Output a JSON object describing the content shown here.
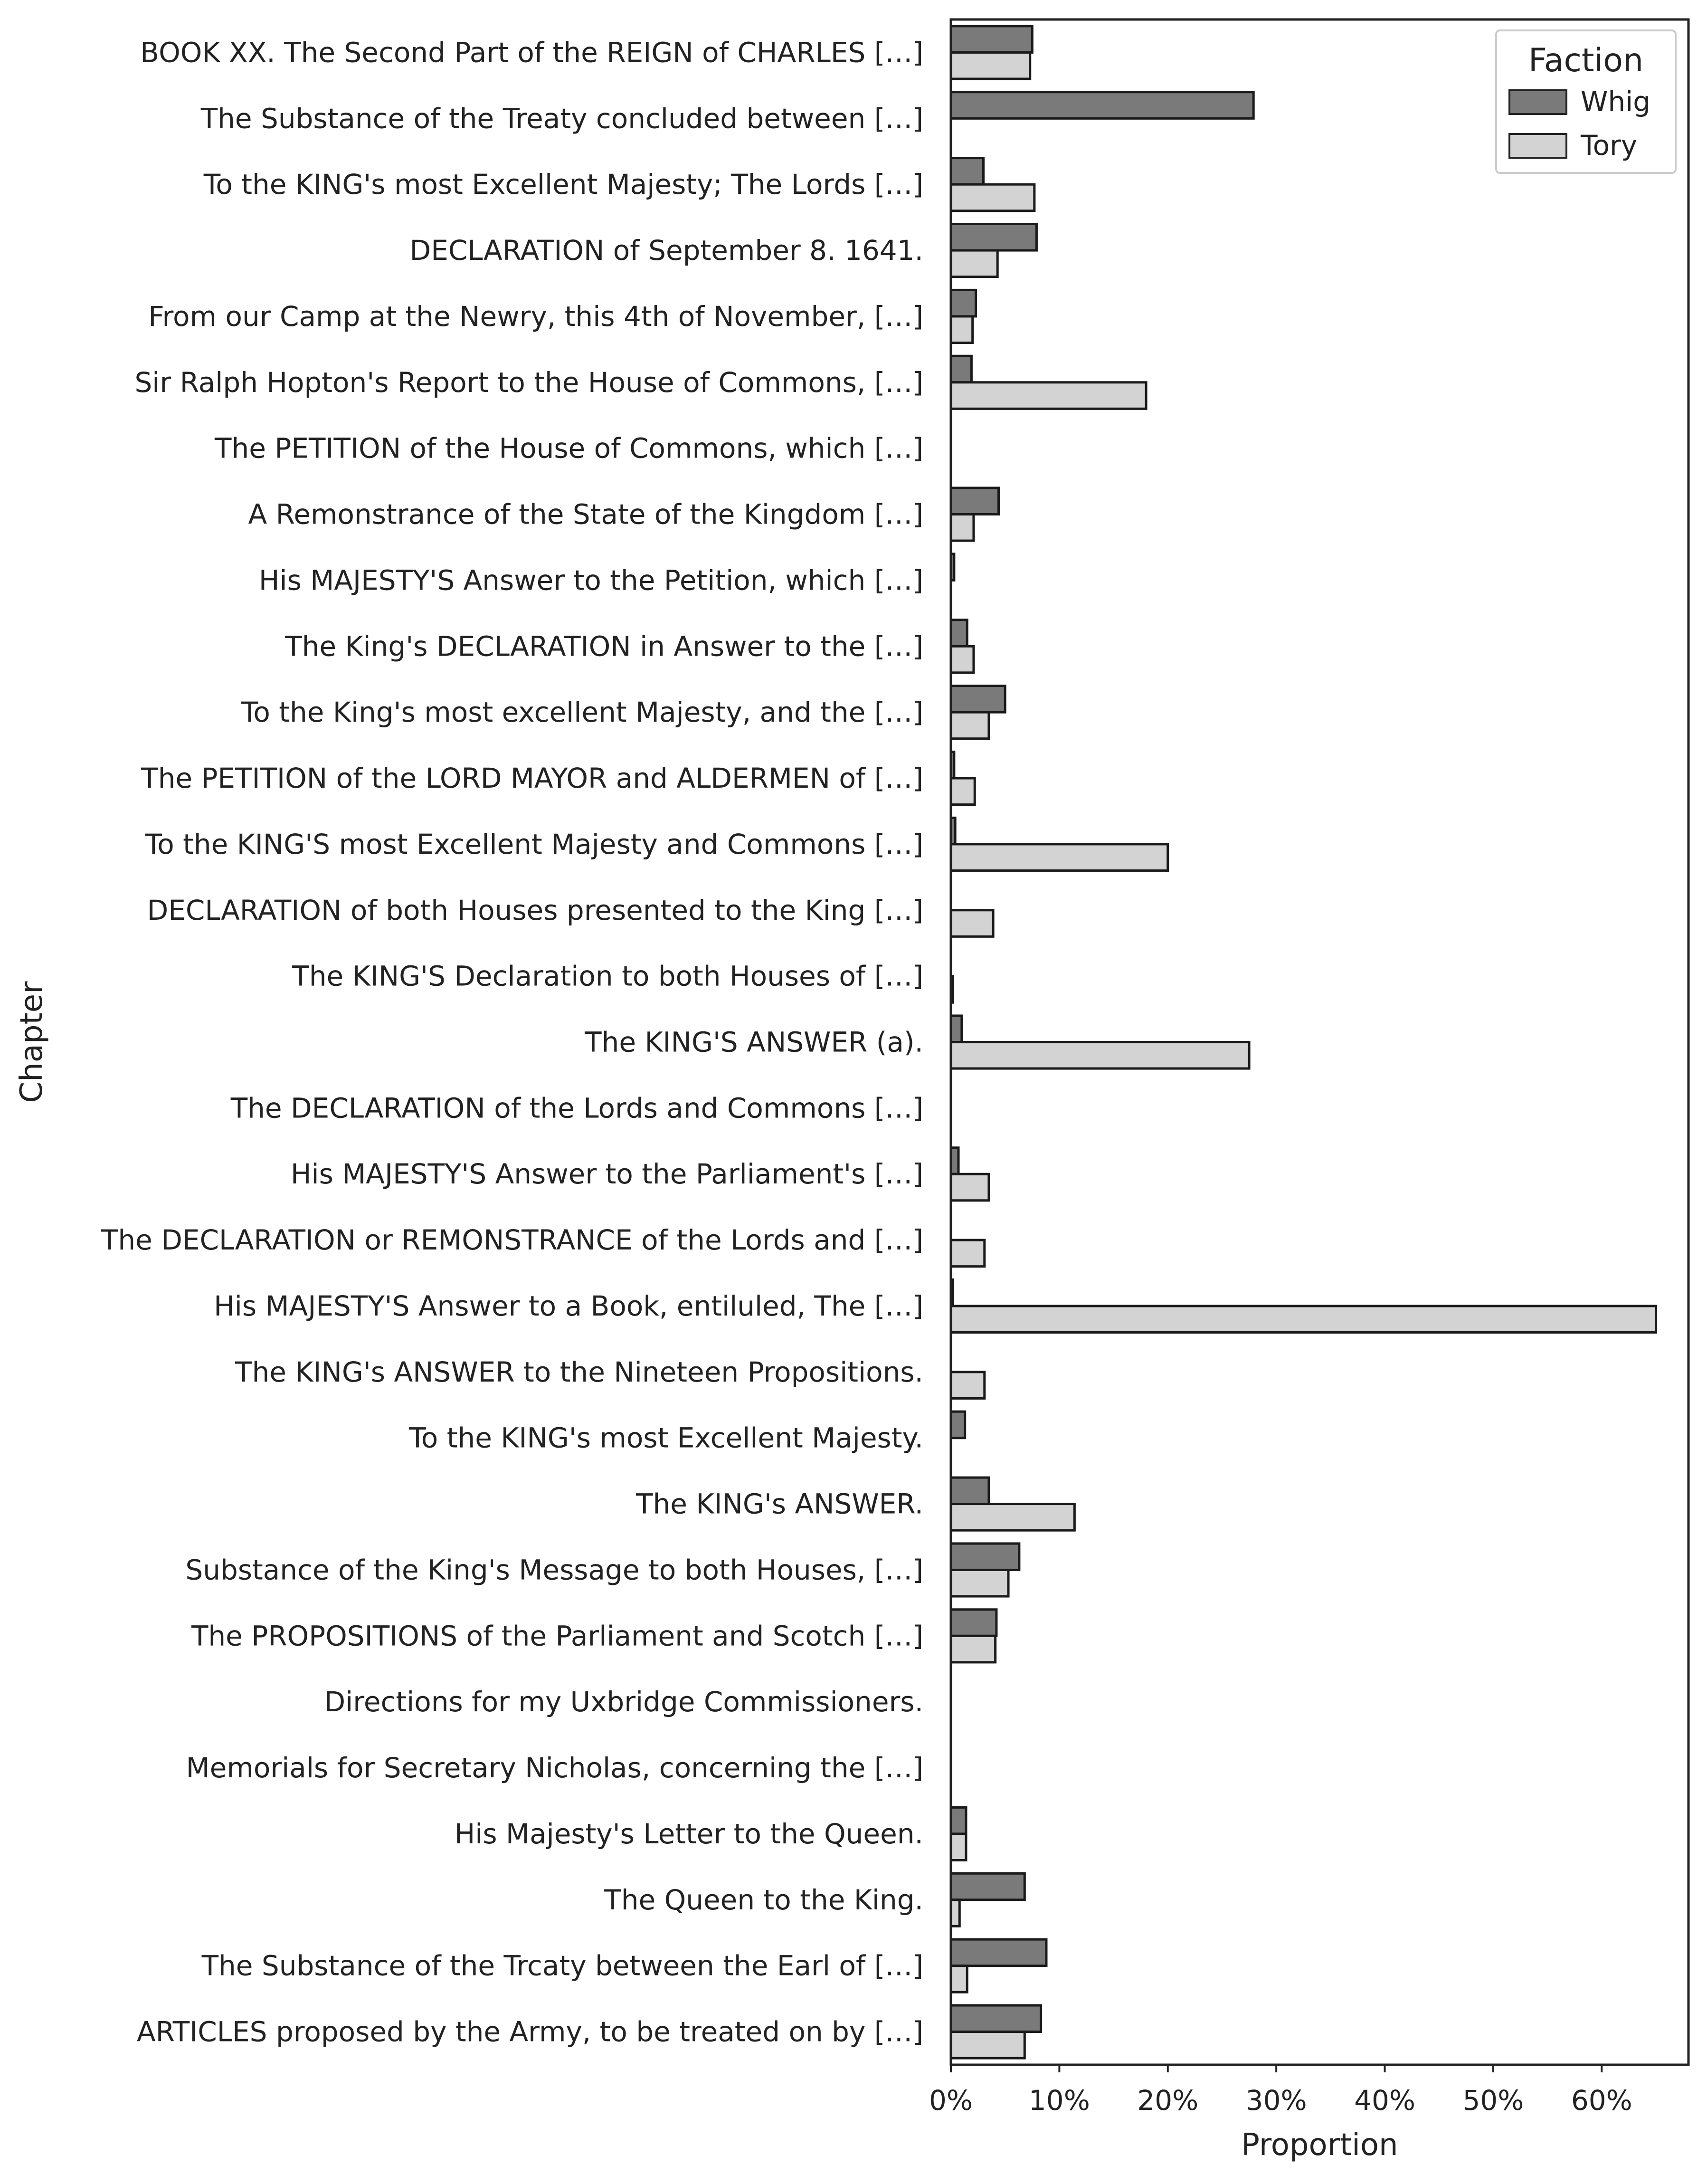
{
  "chart_data": {
    "type": "bar",
    "orientation": "horizontal",
    "title": "",
    "xlabel": "Proportion",
    "ylabel": "Chapter",
    "xlim": [
      0,
      0.68
    ],
    "x_ticks": [
      0,
      0.1,
      0.2,
      0.3,
      0.4,
      0.5,
      0.6
    ],
    "x_tick_labels": [
      "0%",
      "10%",
      "20%",
      "30%",
      "40%",
      "50%",
      "60%"
    ],
    "grid": false,
    "legend": {
      "title": "Faction",
      "placement": "top-right",
      "entries": [
        "Whig",
        "Tory"
      ]
    },
    "categories": [
      "BOOK XX. The Second Part of the REIGN of CHARLES […]",
      "The Substance of the Treaty concluded between […]",
      "To the KING's most Excellent Majesty; The Lords […]",
      "DECLARATION of September 8. 1641.",
      "From our Camp at the Newry, this 4th of November, […]",
      "Sir Ralph Hopton's Report to the House of Commons, […]",
      "The PETITION of the House of Commons, which […]",
      "A Remonstrance of the State of the Kingdom […]",
      "His MAJESTY'S Answer to the Petition, which […]",
      "The King's DECLARATION in Answer to the […]",
      "To the King's most excellent Majesty, and the […]",
      "The PETITION of the LORD MAYOR and ALDERMEN of […]",
      "To the KING'S most Excellent Majesty and Commons […]",
      "DECLARATION of both Houses presented to the King […]",
      "The KING'S Declaration to both Houses of […]",
      "The KING'S ANSWER (a).",
      "The DECLARATION of the Lords and Commons […]",
      "His MAJESTY'S Answer to the Parliament's […]",
      "The DECLARATION or REMONSTRANCE of the Lords and […]",
      "His MAJESTY'S Answer to a Book, entiluled, The […]",
      "The KING's ANSWER to the Nineteen Propositions.",
      "To the KING's most Excellent Majesty.",
      "The KING's ANSWER.",
      "Substance of the King's Message to both Houses, […]",
      "The PROPOSITIONS of the Parliament and Scotch […]",
      "Directions for my Uxbridge Commissioners.",
      "Memorials for Secretary Nicholas, concerning the […]",
      "His Majesty's Letter to the Queen.",
      "The Queen to the King.",
      "The Substance of the Trcaty between the Earl of […]",
      "ARTICLES proposed by the Army, to be treated on by […]"
    ],
    "series": [
      {
        "name": "Whig",
        "color": "#7a7a7a",
        "values": [
          0.075,
          0.279,
          0.03,
          0.079,
          0.023,
          0.019,
          0.0,
          0.044,
          0.003,
          0.015,
          0.05,
          0.003,
          0.004,
          0.0,
          0.0,
          0.01,
          0.0,
          0.007,
          0.0,
          0.002,
          0.0,
          0.013,
          0.035,
          0.063,
          0.042,
          0.0,
          0.0,
          0.014,
          0.068,
          0.088,
          0.083
        ]
      },
      {
        "name": "Tory",
        "color": "#d3d3d3",
        "values": [
          0.073,
          0.0,
          0.077,
          0.043,
          0.02,
          0.18,
          0.0,
          0.021,
          0.0,
          0.021,
          0.035,
          0.022,
          0.2,
          0.039,
          0.002,
          0.275,
          0.0,
          0.035,
          0.031,
          0.65,
          0.031,
          0.0,
          0.114,
          0.053,
          0.041,
          0.0,
          0.0,
          0.014,
          0.008,
          0.015,
          0.068
        ]
      }
    ]
  }
}
